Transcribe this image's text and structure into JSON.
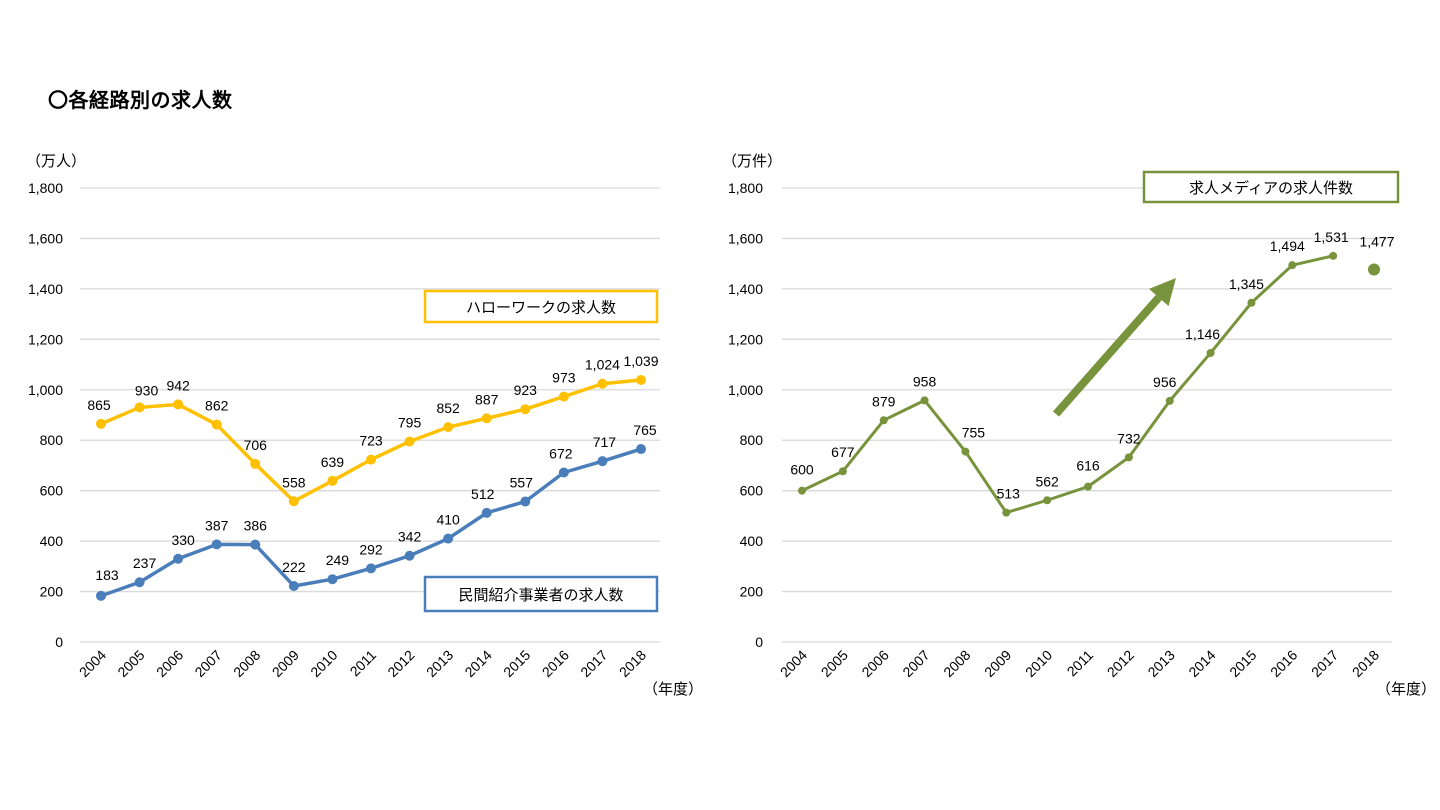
{
  "page": {
    "title": "〇各経路別の求人数"
  },
  "chart_data": [
    {
      "type": "line",
      "id": "left",
      "title": "",
      "ylabel": "（万人）",
      "xlabel": "（年度）",
      "ylim": [
        0,
        1800
      ],
      "yticks": [
        0,
        200,
        400,
        600,
        800,
        1000,
        1200,
        1400,
        1600,
        1800
      ],
      "ytick_labels": [
        "0",
        "200",
        "400",
        "600",
        "800",
        "1,000",
        "1,200",
        "1,400",
        "1,600",
        "1,800"
      ],
      "grid": true,
      "categories": [
        "2004",
        "2005",
        "2006",
        "2007",
        "2008",
        "2009",
        "2010",
        "2011",
        "2012",
        "2013",
        "2014",
        "2015",
        "2016",
        "2017",
        "2018"
      ],
      "series": [
        {
          "name": "ハローワークの求人数",
          "color": "#FFC000",
          "values": [
            865,
            930,
            942,
            862,
            706,
            558,
            639,
            723,
            795,
            852,
            887,
            923,
            973,
            1024,
            1039
          ],
          "labels": [
            "865",
            "930",
            "942",
            "862",
            "706",
            "558",
            "639",
            "723",
            "795",
            "852",
            "887",
            "923",
            "973",
            "1,024",
            "1,039"
          ]
        },
        {
          "name": "民間紹介事業者の求人数",
          "color": "#4A7EBB",
          "values": [
            183,
            237,
            330,
            387,
            386,
            222,
            249,
            292,
            342,
            410,
            512,
            557,
            672,
            717,
            765
          ],
          "labels": [
            "183",
            "237",
            "330",
            "387",
            "386",
            "222",
            "249",
            "292",
            "342",
            "410",
            "512",
            "557",
            "672",
            "717",
            "765"
          ]
        }
      ],
      "legend": "inline boxes (upper-right for ハローワーク, lower-right for 民間紹介事業者)"
    },
    {
      "type": "line",
      "id": "right",
      "title": "",
      "ylabel": "（万件）",
      "xlabel": "（年度）",
      "ylim": [
        0,
        1800
      ],
      "yticks": [
        0,
        200,
        400,
        600,
        800,
        1000,
        1200,
        1400,
        1600,
        1800
      ],
      "ytick_labels": [
        "0",
        "200",
        "400",
        "600",
        "800",
        "1,000",
        "1,200",
        "1,400",
        "1,600",
        "1,800"
      ],
      "grid": true,
      "categories": [
        "2004",
        "2005",
        "2006",
        "2007",
        "2008",
        "2009",
        "2010",
        "2011",
        "2012",
        "2013",
        "2014",
        "2015",
        "2016",
        "2017",
        "2018"
      ],
      "series": [
        {
          "name": "求人メディアの求人件数",
          "color": "#77933C",
          "values": [
            600,
            677,
            879,
            958,
            755,
            513,
            562,
            616,
            732,
            956,
            1146,
            1345,
            1494,
            1531,
            1477
          ],
          "labels": [
            "600",
            "677",
            "879",
            "958",
            "755",
            "513",
            "562",
            "616",
            "732",
            "956",
            "1,146",
            "1,345",
            "1,494",
            "1,531",
            "1,477"
          ],
          "connected_through_index": 13,
          "note": "2018 value shown as an unconnected point"
        }
      ],
      "annotations": [
        {
          "type": "arrow",
          "meaning": "upward trend",
          "color": "#77933C"
        }
      ],
      "legend": "inline box (top-right)"
    }
  ]
}
